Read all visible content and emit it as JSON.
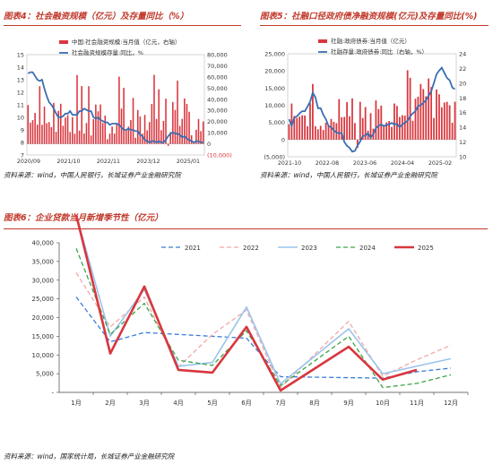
{
  "panels": {
    "fig4": {
      "title": "图表4：社会融资规模（亿元）及存量同比（%）",
      "source": "资料来源：wind，中国人民银行，长城证券产业金融研究院"
    },
    "fig5": {
      "title": "图表5：社融口径政府债净融资规模(亿元)及存量同比(%)",
      "source": "资料来源：wind，中国人民银行，长城证券产业金融研究院"
    },
    "fig6": {
      "title": "图表6：企业贷款当月新增季节性（亿元）",
      "source": "资料来源：wind，国家统计局，长城证券产业金融研究院"
    }
  },
  "colors": {
    "bar": "#d9363e",
    "line": "#3b6db3",
    "title": "#c0392b"
  },
  "chart_data": [
    {
      "id": "fig4",
      "type": "bar+line",
      "legend": [
        "中国:社会融资规模:当月值（亿元，右轴）",
        "社会融资规模存量:同比，%"
      ],
      "yleft_ticks": [
        "7",
        "8",
        "9",
        "10",
        "11",
        "12",
        "13",
        "14",
        "15"
      ],
      "yleft_lim": [
        7,
        15
      ],
      "yright_ticks": [
        "(10,000)",
        "0",
        "10,000",
        "20,000",
        "30,000",
        "40,000",
        "50,000",
        "60,000",
        "70,000",
        "80,000"
      ],
      "yright_lim": [
        -10000,
        80000
      ],
      "x_ticks": [
        "2020/09",
        "2021/10",
        "2022/11",
        "2023/12",
        "2025/01"
      ],
      "series": [
        {
          "kind": "bar",
          "axis": "right",
          "values": [
            34800,
            19000,
            21300,
            27700,
            17200,
            51700,
            17100,
            33400,
            18500,
            19500,
            15000,
            36700,
            10800,
            29600,
            35900,
            16200,
            23500,
            25700,
            10600,
            23900,
            9100,
            61700,
            11900,
            51800,
            9300,
            18700,
            51700,
            7500,
            22100,
            35300,
            29200,
            35300,
            18700,
            25300,
            4200,
            9100,
            15500,
            9100,
            18700,
            60200,
            31600,
            50300,
            12300,
            15500,
            21300,
            41200,
            5400,
            30300,
            24500,
            9100,
            26000,
            12100,
            19500,
            35800,
            61900,
            22300,
            48900,
            12200,
            20600,
            40500,
            -1900,
            10600,
            37500,
            30400,
            56700,
            16100,
            22400,
            40700,
            35800,
            28800,
            7700,
            2300,
            12600,
            22200,
            11400,
            20000
          ]
        },
        {
          "kind": "line",
          "axis": "left",
          "values": [
            13.5,
            13.6,
            13.6,
            13.3,
            13.0,
            12.9,
            13.0,
            12.3,
            11.7,
            11.2,
            11.0,
            10.7,
            10.3,
            10.0,
            10.0,
            10.1,
            10.3,
            10.3,
            10.5,
            10.2,
            10.2,
            10.2,
            10.5,
            10.5,
            10.7,
            10.6,
            10.5,
            10.5,
            10.0,
            9.9,
            10.0,
            9.8,
            9.7,
            9.6,
            9.6,
            9.4,
            9.5,
            9.5,
            9.5,
            9.4,
            9.2,
            9.0,
            9.0,
            9.1,
            9.0,
            9.0,
            8.9,
            8.9,
            8.6,
            8.5,
            8.2,
            8.1,
            8.0,
            8.1,
            8.1,
            8.0,
            8.1,
            8.0,
            8.0,
            8.2,
            8.5,
            8.7,
            8.8,
            8.7,
            8.7,
            8.6,
            8.4,
            8.5,
            8.3,
            8.2,
            8.1,
            8.0,
            8.1,
            8.1,
            8.0,
            8.0
          ]
        }
      ]
    },
    {
      "id": "fig5",
      "type": "bar+line",
      "legend": [
        "社融:政府债券:当月值（亿元）",
        "社融存量:政府债券:同比（右轴，%）"
      ],
      "yleft_ticks": [
        "(5,000)",
        "0",
        "5,000",
        "10,000",
        "15,000",
        "20,000",
        "25,000"
      ],
      "yleft_lim": [
        -5000,
        25000
      ],
      "yright_ticks": [
        "10",
        "12",
        "14",
        "16",
        "18",
        "20",
        "22",
        "24"
      ],
      "yright_lim": [
        10,
        24
      ],
      "x_ticks": [
        "2021-10",
        "2022-08",
        "2023-06",
        "2024-04",
        "2025-02"
      ],
      "series": [
        {
          "kind": "bar",
          "axis": "left",
          "values": [
            4500,
            10500,
            6900,
            6300,
            6700,
            7100,
            7000,
            3900,
            10600,
            16200,
            3900,
            3000,
            4000,
            2800,
            4900,
            4000,
            6000,
            5200,
            4800,
            11800,
            6500,
            6600,
            10900,
            6800,
            12000,
            4800,
            -2400,
            11000,
            6300,
            9500,
            2600,
            7700,
            3200,
            11400,
            8900,
            9900,
            4000,
            5000,
            5400,
            3700,
            10500,
            9800,
            6600,
            7100,
            7000,
            20200,
            18000,
            5500,
            11900,
            12500,
            16200,
            14700,
            12600,
            17800,
            15300,
            6300,
            14600,
            13200,
            9400,
            10800,
            11000,
            10000,
            4900,
            11000
          ]
        },
        {
          "kind": "line",
          "axis": "right",
          "values": [
            15.1,
            14.2,
            15.3,
            15.5,
            15.9,
            16.2,
            16.2,
            16.8,
            17.5,
            18.7,
            18.1,
            16.6,
            16.6,
            15.7,
            15.1,
            14.2,
            14.0,
            13.6,
            13.3,
            13.2,
            13.2,
            12.0,
            11.5,
            11.2,
            10.7,
            10.8,
            11.5,
            12.1,
            12.8,
            12.9,
            13.2,
            12.6,
            13.1,
            13.9,
            14.2,
            14.4,
            14.2,
            14.3,
            14.4,
            14.6,
            14.4,
            14.5,
            14.0,
            14.4,
            14.6,
            14.9,
            15.5,
            15.9,
            16.2,
            16.9,
            17.0,
            17.3,
            17.7,
            18.3,
            18.9,
            20.0,
            21.2,
            21.7,
            22.1,
            21.4,
            20.7,
            20.4,
            19.4,
            19.2
          ]
        }
      ]
    },
    {
      "id": "fig6",
      "type": "line",
      "categories": [
        "1月",
        "2月",
        "3月",
        "4月",
        "5月",
        "6月",
        "7月",
        "8月",
        "9月",
        "10月",
        "11月",
        "12月"
      ],
      "y_ticks": [
        "-",
        "5,000",
        "10,000",
        "15,000",
        "20,000",
        "25,000",
        "30,000",
        "35,000",
        "40,000"
      ],
      "ylim": [
        0,
        40000
      ],
      "series": [
        {
          "name": "2021",
          "color": "#3a7bd5",
          "dash": "5,3",
          "width": 1.3,
          "values": [
            25500,
            13500,
            16000,
            null,
            null,
            14500,
            4200,
            null,
            null,
            3800,
            5500,
            6500
          ]
        },
        {
          "name": "2022",
          "color": "#f4a6a6",
          "dash": "5,3",
          "width": 1.3,
          "values": [
            32000,
            17500,
            25500,
            6800,
            15500,
            22000,
            1300,
            null,
            19000,
            4300,
            8700,
            12600
          ]
        },
        {
          "name": "2023",
          "color": "#9ac4ea",
          "dash": "",
          "width": 1.6,
          "values": [
            47500,
            15000,
            27500,
            7000,
            8000,
            22800,
            2300,
            null,
            17000,
            5000,
            null,
            9000
          ]
        },
        {
          "name": "2024",
          "color": "#3ca34a",
          "dash": "5,3",
          "width": 1.3,
          "values": [
            38500,
            15500,
            23800,
            8600,
            7200,
            16500,
            1800,
            null,
            15000,
            1300,
            2400,
            4700
          ]
        },
        {
          "name": "2025",
          "color": "#d9363e",
          "dash": "",
          "width": 2.6,
          "values": [
            47500,
            10400,
            28300,
            6000,
            5300,
            17500,
            500,
            null,
            12200,
            3400,
            6000,
            null
          ]
        }
      ]
    }
  ]
}
